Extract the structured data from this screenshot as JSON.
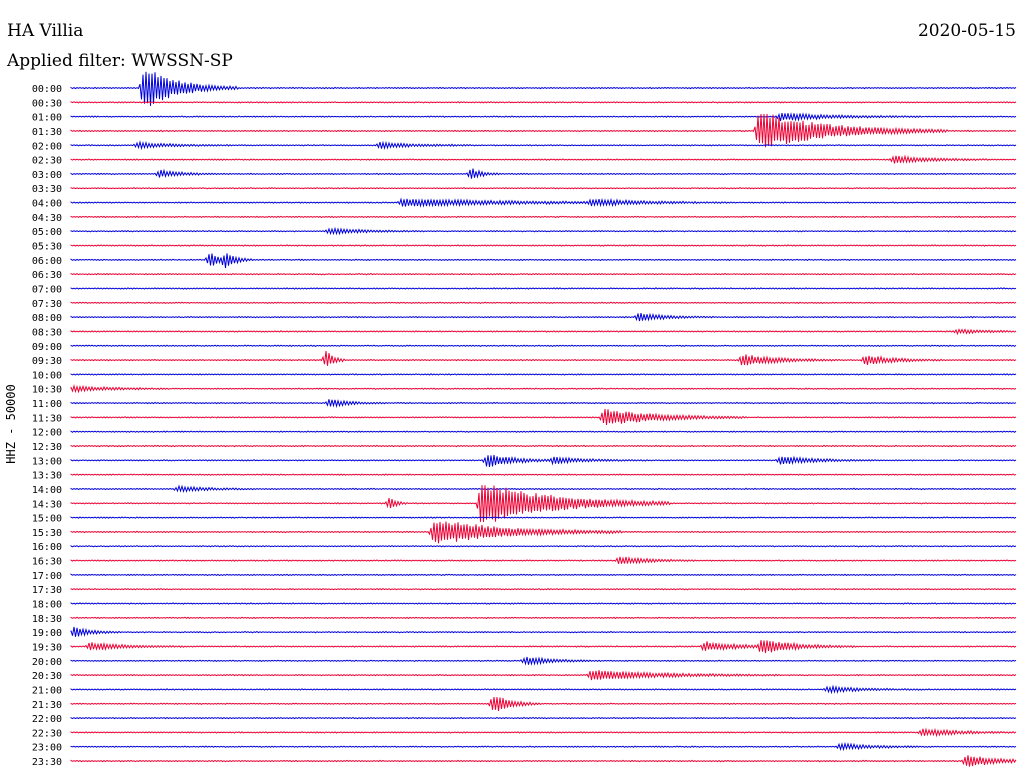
{
  "chart_data": {
    "type": "line",
    "title_left": "HA Villia",
    "title_right": "2020-05-15",
    "subtitle": "Applied filter: WWSSN-SP",
    "ylabel": "HHZ - 50000",
    "row_labels": [
      "00:00",
      "00:30",
      "01:00",
      "01:30",
      "02:00",
      "02:30",
      "03:00",
      "03:30",
      "04:00",
      "04:30",
      "05:00",
      "05:30",
      "06:00",
      "06:30",
      "07:00",
      "07:30",
      "08:00",
      "08:30",
      "09:00",
      "09:30",
      "10:00",
      "10:30",
      "11:00",
      "11:30",
      "12:00",
      "12:30",
      "13:00",
      "13:30",
      "14:00",
      "14:30",
      "15:00",
      "15:30",
      "16:00",
      "16:30",
      "17:00",
      "17:30",
      "18:00",
      "18:30",
      "19:00",
      "19:30",
      "20:00",
      "20:30",
      "21:00",
      "21:30",
      "22:00",
      "22:30",
      "23:00",
      "23:30"
    ],
    "colors": {
      "even": "#0000dd",
      "odd": "#ee0033"
    },
    "minutes_per_row": 30,
    "events": [
      {
        "row": 0,
        "minute": 2.3,
        "amp": 22,
        "dur": 1.0
      },
      {
        "row": 2,
        "minute": 22.5,
        "amp": 4,
        "dur": 1.5
      },
      {
        "row": 3,
        "minute": 21.8,
        "amp": 20,
        "dur": 2.0
      },
      {
        "row": 4,
        "minute": 2.1,
        "amp": 3,
        "dur": 1.0
      },
      {
        "row": 4,
        "minute": 9.8,
        "amp": 3,
        "dur": 1.0
      },
      {
        "row": 5,
        "minute": 26.1,
        "amp": 4,
        "dur": 1.0
      },
      {
        "row": 6,
        "minute": 2.8,
        "amp": 4,
        "dur": 0.6
      },
      {
        "row": 6,
        "minute": 12.7,
        "amp": 6,
        "dur": 0.3
      },
      {
        "row": 8,
        "minute": 10.5,
        "amp": 4,
        "dur": 3.0
      },
      {
        "row": 8,
        "minute": 16.5,
        "amp": 3,
        "dur": 1.5
      },
      {
        "row": 10,
        "minute": 8.2,
        "amp": 3,
        "dur": 1.0
      },
      {
        "row": 12,
        "minute": 4.4,
        "amp": 7,
        "dur": 0.4
      },
      {
        "row": 12,
        "minute": 4.9,
        "amp": 6,
        "dur": 0.3
      },
      {
        "row": 16,
        "minute": 18.0,
        "amp": 4,
        "dur": 0.8
      },
      {
        "row": 17,
        "minute": 28.1,
        "amp": 2,
        "dur": 1.0
      },
      {
        "row": 19,
        "minute": 8.1,
        "amp": 10,
        "dur": 0.2
      },
      {
        "row": 19,
        "minute": 21.3,
        "amp": 6,
        "dur": 1.0
      },
      {
        "row": 19,
        "minute": 25.2,
        "amp": 5,
        "dur": 0.8
      },
      {
        "row": 21,
        "minute": 0.1,
        "amp": 3,
        "dur": 1.0
      },
      {
        "row": 22,
        "minute": 8.2,
        "amp": 4,
        "dur": 0.6
      },
      {
        "row": 23,
        "minute": 16.9,
        "amp": 9,
        "dur": 1.5
      },
      {
        "row": 26,
        "minute": 13.2,
        "amp": 7,
        "dur": 0.8
      },
      {
        "row": 26,
        "minute": 15.3,
        "amp": 3,
        "dur": 1.0
      },
      {
        "row": 26,
        "minute": 22.5,
        "amp": 4,
        "dur": 1.0
      },
      {
        "row": 28,
        "minute": 3.4,
        "amp": 3,
        "dur": 0.8
      },
      {
        "row": 29,
        "minute": 10.1,
        "amp": 6,
        "dur": 0.2
      },
      {
        "row": 29,
        "minute": 13.0,
        "amp": 24,
        "dur": 2.0
      },
      {
        "row": 31,
        "minute": 11.5,
        "amp": 14,
        "dur": 2.0
      },
      {
        "row": 33,
        "minute": 17.4,
        "amp": 4,
        "dur": 0.8
      },
      {
        "row": 38,
        "minute": 0.1,
        "amp": 5,
        "dur": 0.5
      },
      {
        "row": 39,
        "minute": 0.6,
        "amp": 4,
        "dur": 1.0
      },
      {
        "row": 39,
        "minute": 20.1,
        "amp": 5,
        "dur": 1.0
      },
      {
        "row": 39,
        "minute": 21.9,
        "amp": 7,
        "dur": 1.0
      },
      {
        "row": 40,
        "minute": 14.4,
        "amp": 4,
        "dur": 0.8
      },
      {
        "row": 41,
        "minute": 16.5,
        "amp": 5,
        "dur": 2.0
      },
      {
        "row": 42,
        "minute": 24.0,
        "amp": 3,
        "dur": 1.0
      },
      {
        "row": 43,
        "minute": 13.4,
        "amp": 10,
        "dur": 0.5
      },
      {
        "row": 45,
        "minute": 27.0,
        "amp": 4,
        "dur": 1.0
      },
      {
        "row": 46,
        "minute": 24.4,
        "amp": 3,
        "dur": 1.0
      },
      {
        "row": 47,
        "minute": 28.4,
        "amp": 6,
        "dur": 1.0
      }
    ]
  }
}
